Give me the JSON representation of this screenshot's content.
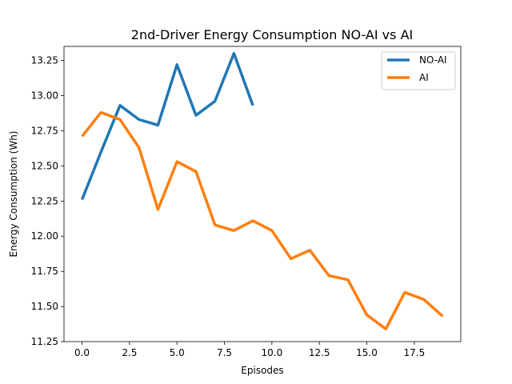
{
  "chart_data": {
    "type": "line",
    "title": "2nd-Driver Energy Consumption NO-AI vs AI",
    "xlabel": "Episodes",
    "ylabel": "Energy Consumption (Wh)",
    "xlim": [
      -0.95,
      19.95
    ],
    "ylim": [
      11.25,
      13.35
    ],
    "xticks": [
      0.0,
      2.5,
      5.0,
      7.5,
      10.0,
      12.5,
      15.0,
      17.5
    ],
    "yticks": [
      11.25,
      11.5,
      11.75,
      12.0,
      12.25,
      12.5,
      12.75,
      13.0,
      13.25
    ],
    "grid": false,
    "legend_position": "top-right",
    "series": [
      {
        "name": "NO-AI",
        "color": "#1f77b4",
        "x": [
          0,
          1,
          2,
          3,
          4,
          5,
          6,
          7,
          8,
          9
        ],
        "values": [
          12.26,
          12.6,
          12.93,
          12.83,
          12.79,
          13.22,
          12.86,
          12.96,
          13.3,
          12.93
        ]
      },
      {
        "name": "AI",
        "color": "#ff7f0e",
        "x": [
          0,
          1,
          2,
          3,
          4,
          5,
          6,
          7,
          8,
          9,
          10,
          11,
          12,
          13,
          14,
          15,
          16,
          17,
          18,
          19
        ],
        "values": [
          12.71,
          12.88,
          12.83,
          12.63,
          12.19,
          12.53,
          12.46,
          12.08,
          12.04,
          12.11,
          12.04,
          11.84,
          11.9,
          11.72,
          11.69,
          11.44,
          11.34,
          11.6,
          11.55,
          11.43
        ]
      }
    ]
  }
}
